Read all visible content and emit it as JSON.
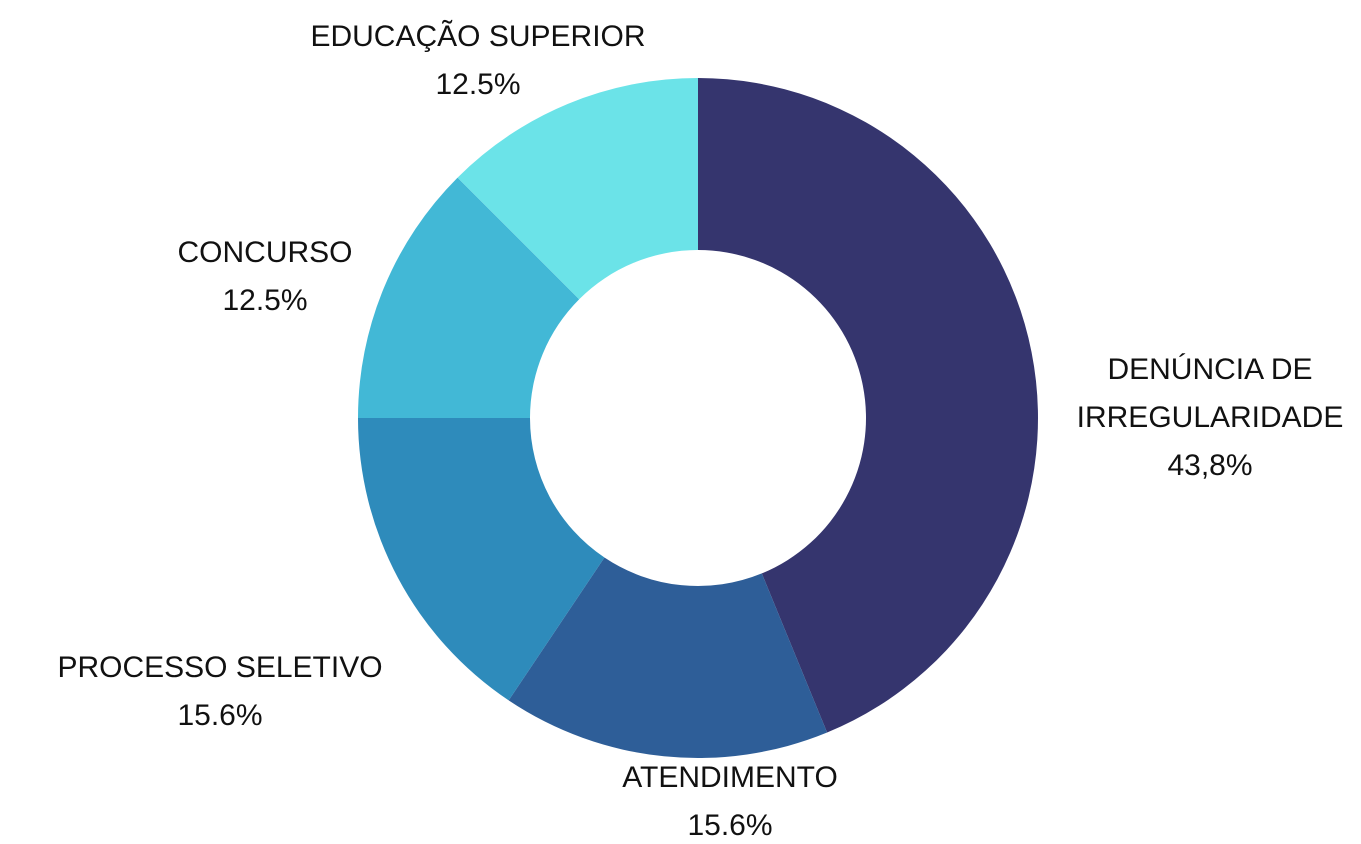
{
  "chart_data": {
    "type": "pie",
    "donut": true,
    "categories": [
      "DENÚNCIA DE IRREGULARIDADE",
      "ATENDIMENTO",
      "PROCESSO SELETIVO",
      "CONCURSO",
      "EDUCAÇÃO SUPERIOR"
    ],
    "values": [
      43.8,
      15.6,
      15.6,
      12.5,
      12.5
    ],
    "value_labels": [
      "43,8%",
      "15.6%",
      "15.6%",
      "12.5%",
      "12.5%"
    ],
    "colors": [
      "#35356e",
      "#2e5e98",
      "#2e8bbb",
      "#42b8d6",
      "#6be3e8"
    ]
  }
}
